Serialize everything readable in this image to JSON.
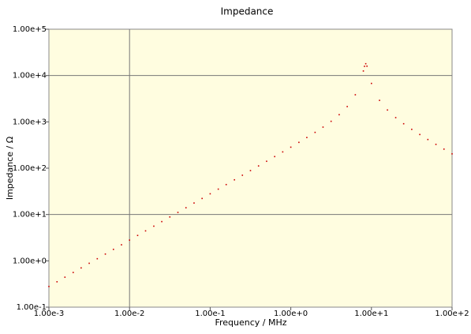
{
  "chart_data": {
    "type": "scatter",
    "title": "Impedance",
    "x_label": "Frequency / MHz",
    "y_label": "Impedance / Ω",
    "log_x": true,
    "log_y": true,
    "x": [
      0.001,
      0.00126,
      0.00158,
      0.002,
      0.00251,
      0.00316,
      0.00398,
      0.00501,
      0.00631,
      0.00794,
      0.01,
      0.0126,
      0.0158,
      0.02,
      0.0251,
      0.0316,
      0.0398,
      0.0501,
      0.0631,
      0.0794,
      0.1,
      0.126,
      0.158,
      0.2,
      0.251,
      0.316,
      0.398,
      0.501,
      0.631,
      0.794,
      1,
      1.26,
      1.58,
      2,
      2.51,
      3.16,
      3.98,
      5.01,
      6.31,
      7.94,
      8.2,
      8.5,
      8.8,
      10,
      12.6,
      15.8,
      20,
      25.1,
      31.6,
      39.8,
      50.1,
      63.1,
      79.4,
      100
    ],
    "series": [
      {
        "name": "Impedance",
        "color": "#cc0000",
        "values": [
          0.28,
          0.353,
          0.443,
          0.56,
          0.703,
          0.885,
          1.11,
          1.4,
          1.77,
          2.22,
          2.8,
          3.53,
          4.43,
          5.6,
          7.03,
          8.85,
          11.1,
          14,
          17.7,
          22.2,
          28,
          35.3,
          44.3,
          56.1,
          70.4,
          88.7,
          111.8,
          140.9,
          177.9,
          224.5,
          284,
          360.7,
          458.6,
          593,
          770,
          1028,
          1428,
          2140,
          3846,
          12530,
          15810,
          18000,
          15940,
          6762,
          2910,
          1803,
          1235,
          911,
          690,
          533,
          416,
          327,
          258,
          204
        ]
      }
    ],
    "xlim": [
      0.001,
      100
    ],
    "ylim": [
      0.1,
      100000
    ],
    "xticks": [
      {
        "value": 0.001,
        "label": "1.00e-3"
      },
      {
        "value": 0.01,
        "label": "1.00e-2"
      },
      {
        "value": 0.1,
        "label": "1.00e-1"
      },
      {
        "value": 1,
        "label": "1.00e+0"
      },
      {
        "value": 10,
        "label": "1.00e+1"
      },
      {
        "value": 100,
        "label": "1.00e+2"
      }
    ],
    "yticks": [
      {
        "value": 0.1,
        "label": "1.00e-1"
      },
      {
        "value": 1,
        "label": "1.00e+0"
      },
      {
        "value": 10,
        "label": "1.00e+1"
      },
      {
        "value": 100,
        "label": "1.00e+2"
      },
      {
        "value": 1000,
        "label": "1.00e+3"
      },
      {
        "value": 10000,
        "label": "1.00e+4"
      },
      {
        "value": 100000,
        "label": "1.00e+5"
      }
    ],
    "x_gridlines": [
      0.01
    ],
    "y_gridlines": [
      10,
      10000
    ],
    "background": "#fffde0"
  }
}
